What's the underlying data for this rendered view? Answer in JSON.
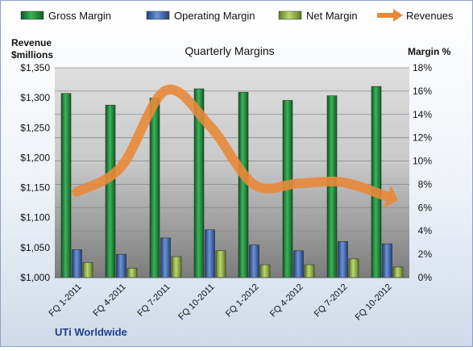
{
  "chart_data": {
    "type": "bar",
    "title": "Quarterly Margins",
    "source_label": "UTi Worldwide",
    "y_left_label_line1": "Revenue",
    "y_left_label_line2": "$millions",
    "y_right_label": "Margin %",
    "y_left_ticks": [
      "$1,000",
      "$1,050",
      "$1,100",
      "$1,150",
      "$1,200",
      "$1,250",
      "$1,300",
      "$1,350"
    ],
    "y_right_ticks": [
      "0%",
      "2%",
      "4%",
      "6%",
      "8%",
      "10%",
      "12%",
      "14%",
      "16%",
      "18%"
    ],
    "ylim_left": [
      1000,
      1350
    ],
    "ylim_right": [
      0,
      18
    ],
    "categories": [
      "FQ 1-2011",
      "FQ 4-2011",
      "FQ 7-2011",
      "FQ 10-2011",
      "FQ 1-2012",
      "FQ 4-2012",
      "FQ 7-2012",
      "FQ 10-2012"
    ],
    "series": [
      {
        "name": "Gross Margin",
        "axis": "right",
        "kind": "bar",
        "color": "#1E8A3C",
        "values": [
          15.8,
          14.8,
          15.4,
          16.2,
          15.9,
          15.2,
          15.6,
          16.4
        ]
      },
      {
        "name": "Operating Margin",
        "axis": "right",
        "kind": "bar",
        "color": "#3A64B0",
        "values": [
          2.4,
          2.0,
          3.4,
          4.1,
          2.8,
          2.3,
          3.1,
          2.9
        ]
      },
      {
        "name": "Net Margin",
        "axis": "right",
        "kind": "bar",
        "color": "#9AB945",
        "values": [
          1.3,
          0.8,
          1.8,
          2.3,
          1.1,
          1.1,
          1.6,
          0.9
        ]
      },
      {
        "name": "Revenues",
        "axis": "left",
        "kind": "line",
        "color": "#E9883A",
        "values": [
          1143,
          1185,
          1312,
          1253,
          1155,
          1157,
          1159,
          1135
        ]
      }
    ],
    "legend_position": "top",
    "grid": true
  }
}
